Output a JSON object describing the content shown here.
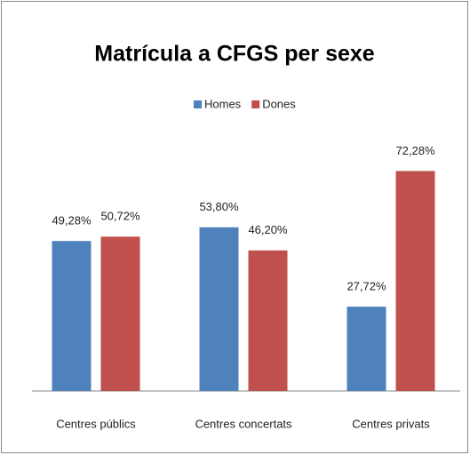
{
  "chart_data": {
    "type": "bar",
    "title": "Matrícula a CFGS per sexe",
    "categories": [
      "Centres públics",
      "Centres concertats",
      "Centres privats"
    ],
    "series": [
      {
        "name": "Homes",
        "color": "#4f81bd",
        "values": [
          49.28,
          53.8,
          27.72
        ],
        "value_labels": [
          "49,28%",
          "53,80%",
          "27,72%"
        ]
      },
      {
        "name": "Dones",
        "color": "#c0504d",
        "values": [
          50.72,
          46.2,
          72.28
        ],
        "value_labels": [
          "50,72%",
          "46,20%",
          "72,28%"
        ]
      }
    ],
    "ylim": [
      0,
      80
    ],
    "legend": "top"
  }
}
